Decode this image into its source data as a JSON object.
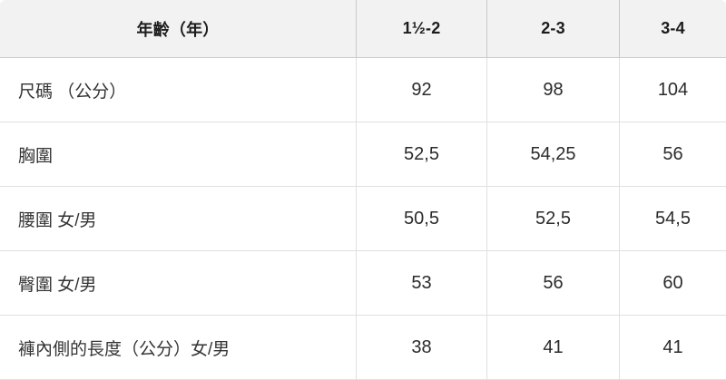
{
  "table": {
    "title_semantic": "children-size-chart",
    "header": {
      "label": "年齡（年）",
      "columns": [
        "1½-2",
        "2-3",
        "3-4"
      ]
    },
    "rows": [
      {
        "label": "尺碼 （公分）",
        "values": [
          "92",
          "98",
          "104"
        ]
      },
      {
        "label": "胸圍",
        "values": [
          "52,5",
          "54,25",
          "56"
        ]
      },
      {
        "label": "腰圍 女/男",
        "values": [
          "50,5",
          "52,5",
          "54,5"
        ]
      },
      {
        "label": "臀圍 女/男",
        "values": [
          "53",
          "56",
          "60"
        ]
      },
      {
        "label": "褲內側的長度（公分）女/男",
        "values": [
          "38",
          "41",
          "41"
        ]
      }
    ],
    "colors": {
      "header_bg": "#f2f2f2",
      "header_border": "#c9c9c9",
      "body_border": "#e0e0e0",
      "header_text": "#1c1c1c",
      "body_text": "#2b2b2b"
    }
  }
}
